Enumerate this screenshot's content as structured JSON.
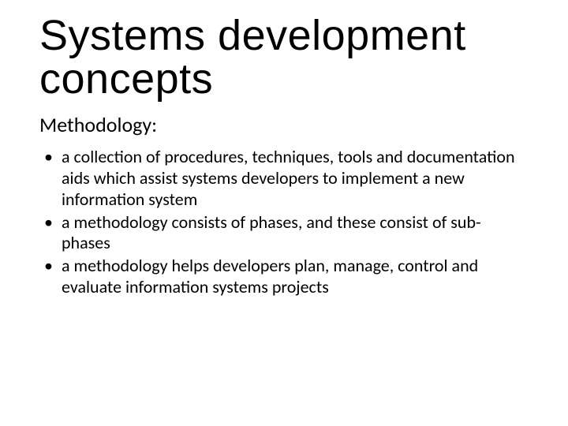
{
  "slide": {
    "title": "Systems development concepts",
    "subheading": "Methodology:",
    "bullets": [
      "a collection of procedures, techniques, tools  and documentation aids which assist systems developers to implement a new information system",
      "a methodology consists of phases, and these consist of sub-phases",
      "a methodology helps developers plan, manage, control and evaluate information systems projects"
    ],
    "colors": {
      "background": "#ffffff",
      "text": "#000000"
    },
    "fonts": {
      "title_family": "Impact",
      "title_size_pt": 40,
      "body_family": "Calibri",
      "subheading_size_pt": 20,
      "bullet_size_pt": 17
    }
  }
}
